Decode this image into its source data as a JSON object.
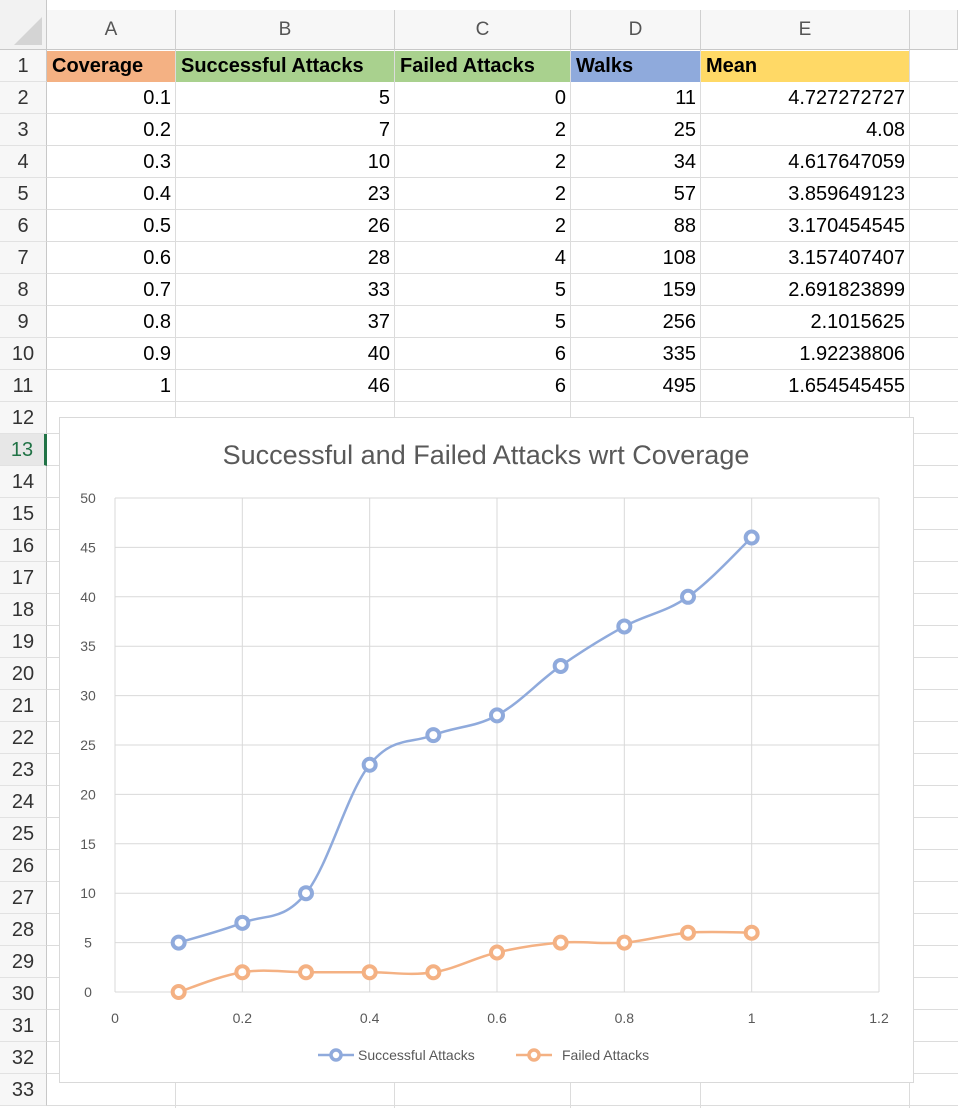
{
  "columns": [
    "A",
    "B",
    "C",
    "D",
    "E"
  ],
  "row_numbers": [
    "1",
    "2",
    "3",
    "4",
    "5",
    "6",
    "7",
    "8",
    "9",
    "10",
    "11",
    "12",
    "13",
    "14",
    "15",
    "16",
    "17",
    "18",
    "19",
    "20",
    "21",
    "22",
    "23",
    "24",
    "25",
    "26",
    "27",
    "28",
    "29",
    "30",
    "31",
    "32",
    "33"
  ],
  "active_row": "13",
  "headers": {
    "coverage": "Coverage",
    "successful": "Successful Attacks",
    "failed": "Failed Attacks",
    "walks": "Walks",
    "mean": "Mean"
  },
  "header_colors": {
    "coverage": "#f4b183",
    "successful": "#a9d18e",
    "failed": "#a9d18e",
    "walks": "#8faadc",
    "mean": "#ffd966"
  },
  "rows": [
    {
      "coverage": "0.1",
      "successful": "5",
      "failed": "0",
      "walks": "11",
      "mean": "4.727272727"
    },
    {
      "coverage": "0.2",
      "successful": "7",
      "failed": "2",
      "walks": "25",
      "mean": "4.08"
    },
    {
      "coverage": "0.3",
      "successful": "10",
      "failed": "2",
      "walks": "34",
      "mean": "4.617647059"
    },
    {
      "coverage": "0.4",
      "successful": "23",
      "failed": "2",
      "walks": "57",
      "mean": "3.859649123"
    },
    {
      "coverage": "0.5",
      "successful": "26",
      "failed": "2",
      "walks": "88",
      "mean": "3.170454545"
    },
    {
      "coverage": "0.6",
      "successful": "28",
      "failed": "4",
      "walks": "108",
      "mean": "3.157407407"
    },
    {
      "coverage": "0.7",
      "successful": "33",
      "failed": "5",
      "walks": "159",
      "mean": "2.691823899"
    },
    {
      "coverage": "0.8",
      "successful": "37",
      "failed": "5",
      "walks": "256",
      "mean": "2.1015625"
    },
    {
      "coverage": "0.9",
      "successful": "40",
      "failed": "6",
      "walks": "335",
      "mean": "1.92238806"
    },
    {
      "coverage": "1",
      "successful": "46",
      "failed": "6",
      "walks": "495",
      "mean": "1.654545455"
    }
  ],
  "chart_data": {
    "type": "scatter",
    "title": "Successful and Failed Attacks wrt Coverage",
    "xlim": [
      0,
      1.2
    ],
    "ylim": [
      0,
      50
    ],
    "x_ticks": [
      "0",
      "0.2",
      "0.4",
      "0.6",
      "0.8",
      "1",
      "1.2"
    ],
    "y_ticks": [
      "0",
      "5",
      "10",
      "15",
      "20",
      "25",
      "30",
      "35",
      "40",
      "45",
      "50"
    ],
    "grid": true,
    "smooth_lines": true,
    "legend_position": "bottom",
    "x": [
      0.1,
      0.2,
      0.3,
      0.4,
      0.5,
      0.6,
      0.7,
      0.8,
      0.9,
      1
    ],
    "series": [
      {
        "name": "Successful Attacks",
        "color": "#8faadc",
        "values": [
          5,
          7,
          10,
          23,
          26,
          28,
          33,
          37,
          40,
          46
        ]
      },
      {
        "name": "Failed Attacks",
        "color": "#f4b183",
        "values": [
          0,
          2,
          2,
          2,
          2,
          4,
          5,
          5,
          6,
          6
        ]
      }
    ]
  }
}
